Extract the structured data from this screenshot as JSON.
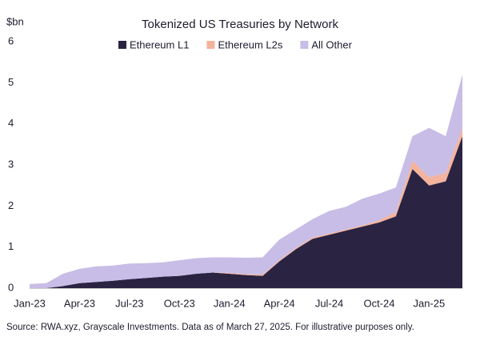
{
  "chart_data": {
    "type": "stacked_area",
    "title": "Tokenized US Treasuries by Network",
    "y_label": "$bn",
    "source": "Source: RWA.xyz, Grayscale Investments. Data as of March 27, 2025. For illustrative purposes only.",
    "categories": [
      "Jan-23",
      "Feb-23",
      "Mar-23",
      "Apr-23",
      "May-23",
      "Jun-23",
      "Jul-23",
      "Aug-23",
      "Sep-23",
      "Oct-23",
      "Nov-23",
      "Dec-23",
      "Jan-24",
      "Feb-24",
      "Mar-24",
      "Apr-24",
      "May-24",
      "Jun-24",
      "Jul-24",
      "Aug-24",
      "Sep-24",
      "Oct-24",
      "Nov-24",
      "Dec-24",
      "Jan-25",
      "Feb-25",
      "Mar-25"
    ],
    "xticks": [
      "Jan-23",
      "Apr-23",
      "Jul-23",
      "Oct-23",
      "Jan-24",
      "Apr-24",
      "Jul-24",
      "Oct-24",
      "Jan-25"
    ],
    "series": [
      {
        "name": "Ethereum L1",
        "color": "#2a2342",
        "values": [
          0,
          0,
          0.05,
          0.12,
          0.15,
          0.18,
          0.22,
          0.25,
          0.28,
          0.3,
          0.35,
          0.38,
          0.35,
          0.32,
          0.3,
          0.65,
          0.95,
          1.2,
          1.3,
          1.4,
          1.5,
          1.6,
          1.75,
          2.9,
          2.5,
          2.6,
          3.7
        ]
      },
      {
        "name": "Ethereum L2s",
        "color": "#f4b39c",
        "values": [
          0,
          0,
          0,
          0,
          0,
          0,
          0,
          0,
          0,
          0,
          0,
          0,
          0.02,
          0.02,
          0.03,
          0.03,
          0.03,
          0.03,
          0.03,
          0.03,
          0.03,
          0.05,
          0.1,
          0.2,
          0.2,
          0.2,
          0.2
        ]
      },
      {
        "name": "All Other",
        "color": "#c8bde6",
        "values": [
          0.1,
          0.12,
          0.3,
          0.35,
          0.38,
          0.37,
          0.38,
          0.36,
          0.35,
          0.38,
          0.38,
          0.37,
          0.38,
          0.4,
          0.42,
          0.5,
          0.45,
          0.45,
          0.55,
          0.55,
          0.65,
          0.65,
          0.6,
          0.6,
          1.2,
          0.9,
          1.3
        ]
      }
    ],
    "ylim": [
      0,
      6
    ],
    "yticks": [
      0,
      1,
      2,
      3,
      4,
      5,
      6
    ]
  }
}
